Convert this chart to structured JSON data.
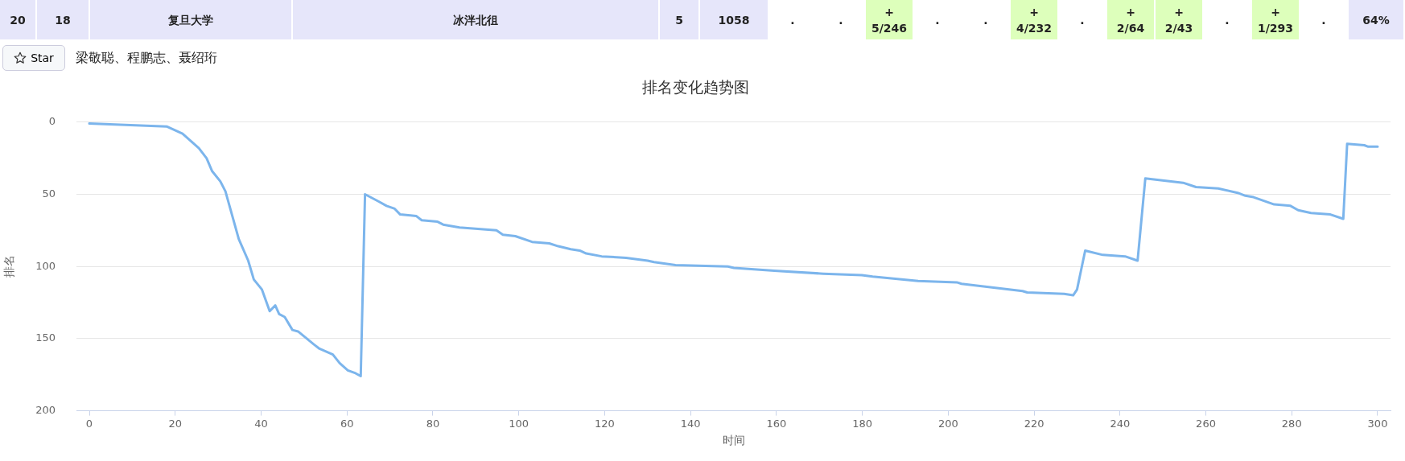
{
  "chart_data": [
    {
      "type": "other",
      "annotations": [
        "20",
        "18",
        "复旦大学",
        "冰泮北徂",
        "5",
        "1058",
        ".",
        ".",
        "+\n5/246",
        ".",
        ".",
        "+\n4/232",
        ".",
        "+\n2/64",
        "+\n2/43",
        ".",
        "+\n1/293",
        ".",
        "64%",
        "Star",
        "梁敬聪、程鹏志、聂绍珩"
      ],
      "colors": [
        "#e6e6fa",
        "#e6e6fa",
        "#e6e6fa",
        "#e6e6fa",
        "#e6e6fa",
        "#e6e6fa",
        null,
        null,
        "#ddffbb",
        null,
        null,
        "#ddffbb",
        null,
        "#ddffbb",
        "#ddffbb",
        null,
        "#ddffbb",
        null,
        "#e6e6fa"
      ]
    },
    {
      "type": "line",
      "title": "排名变化趋势图",
      "xlabel": "时间",
      "ylabel": "排名",
      "x": [
        0,
        18,
        21.7,
        23.6,
        25.5,
        27.3,
        28.6,
        30.5,
        31.7,
        34.8,
        37,
        38.3,
        40.2,
        42,
        43.3,
        44.2,
        45.5,
        47.3,
        48.6,
        52.3,
        53.6,
        56.7,
        58.3,
        60.2,
        62,
        63.2,
        64.2,
        67.4,
        69.2,
        71.1,
        72.4,
        76.1,
        77.4,
        81.1,
        82.4,
        86.2,
        94.8,
        96.3,
        99.2,
        103.1,
        107.1,
        109.2,
        112.1,
        114.2,
        115.7,
        119.3,
        125,
        130,
        131.5,
        136.5,
        148.7,
        150.1,
        159.5,
        170.9,
        179.9,
        182.4,
        193,
        202,
        203.1,
        217.3,
        218.4,
        227,
        229.1,
        230,
        231.9,
        236,
        241.2,
        244.1,
        245.9,
        254.7,
        257.7,
        262.9,
        267.4,
        269.2,
        271.1,
        275.9,
        279.7,
        281.5,
        284.5,
        289,
        292,
        292.9,
        296.9,
        297.8,
        300
      ],
      "series": [
        {
          "color": "#7cb5ec",
          "values": [
            1,
            3,
            8,
            13,
            18,
            25,
            34,
            41,
            48,
            81,
            96,
            109,
            116,
            131,
            127,
            133,
            135,
            144,
            145,
            154,
            157,
            161,
            167,
            172,
            174,
            176,
            50,
            55,
            58,
            60,
            64,
            65,
            68,
            69,
            71,
            73,
            75,
            78,
            79,
            83,
            84,
            86,
            88,
            89,
            91,
            93,
            94,
            96,
            97,
            99,
            100,
            101,
            103,
            105,
            106,
            107,
            110,
            111,
            112,
            117,
            118,
            119,
            120,
            116,
            89,
            92,
            93,
            96,
            39,
            42,
            45,
            46,
            49,
            51,
            52,
            57,
            58,
            61,
            63,
            64,
            67,
            15,
            16,
            17,
            17
          ]
        }
      ],
      "xlim": [
        -3,
        303
      ],
      "xticks": [
        0,
        20,
        40,
        60,
        80,
        100,
        120,
        140,
        160,
        180,
        200,
        220,
        240,
        260,
        280,
        300
      ],
      "ylim": [
        200,
        0
      ],
      "yticks": [
        0,
        50,
        100,
        150,
        200
      ],
      "grid": "y"
    }
  ]
}
